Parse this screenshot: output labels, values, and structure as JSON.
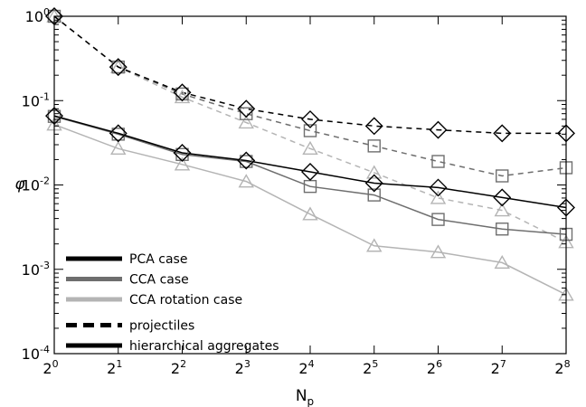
{
  "chart_data": {
    "type": "line",
    "xlabel": "N",
    "xlabel_sub": "p",
    "ylabel": "φ",
    "x_scale": "log2",
    "y_scale": "log10",
    "xlim": [
      1,
      256
    ],
    "ylim": [
      0.0001,
      1
    ],
    "x": [
      1,
      2,
      4,
      8,
      16,
      32,
      64,
      128,
      256
    ],
    "x_ticks": [
      {
        "base": "2",
        "exp": "0"
      },
      {
        "base": "2",
        "exp": "1"
      },
      {
        "base": "2",
        "exp": "2"
      },
      {
        "base": "2",
        "exp": "3"
      },
      {
        "base": "2",
        "exp": "4"
      },
      {
        "base": "2",
        "exp": "5"
      },
      {
        "base": "2",
        "exp": "6"
      },
      {
        "base": "2",
        "exp": "7"
      },
      {
        "base": "2",
        "exp": "8"
      }
    ],
    "y_ticks": [
      {
        "base": "10",
        "exp": "0"
      },
      {
        "base": "10",
        "exp": "-1"
      },
      {
        "base": "10",
        "exp": "-2"
      },
      {
        "base": "10",
        "exp": "-3"
      },
      {
        "base": "10",
        "exp": "-4"
      }
    ],
    "grid": false,
    "legend": {
      "placement": "bottom-left",
      "entries": [
        {
          "label": "PCA case",
          "color": "#000000",
          "style": "solid"
        },
        {
          "label": "CCA case",
          "color": "#6e6e6e",
          "style": "solid"
        },
        {
          "label": "CCA rotation case",
          "color": "#b4b4b4",
          "style": "solid"
        },
        {
          "label": "projectiles",
          "color": "#000000",
          "style": "dashed"
        },
        {
          "label": "hierarchical aggregates",
          "color": "#000000",
          "style": "solid"
        }
      ]
    },
    "series": [
      {
        "case": "PCA",
        "type": "projectiles",
        "color": "#000000",
        "style": "dashed",
        "marker": "diamond",
        "values": [
          1.0,
          0.25,
          0.125,
          0.08,
          0.06,
          0.05,
          0.045,
          0.041,
          0.041
        ]
      },
      {
        "case": "CCA",
        "type": "projectiles",
        "color": "#6e6e6e",
        "style": "dashed",
        "marker": "square",
        "values": [
          1.0,
          0.25,
          0.12,
          0.07,
          0.044,
          0.029,
          0.019,
          0.0128,
          0.016
        ]
      },
      {
        "case": "CCA rotation",
        "type": "projectiles",
        "color": "#b4b4b4",
        "style": "dashed",
        "marker": "triangle",
        "values": [
          1.0,
          0.25,
          0.11,
          0.055,
          0.027,
          0.014,
          0.007,
          0.005,
          0.0021
        ]
      },
      {
        "case": "PCA",
        "type": "hierarchical aggregates",
        "color": "#000000",
        "style": "solid",
        "marker": "diamond",
        "values": [
          0.066,
          0.041,
          0.024,
          0.0195,
          0.0143,
          0.0105,
          0.0093,
          0.0071,
          0.0054
        ]
      },
      {
        "case": "CCA",
        "type": "hierarchical aggregates",
        "color": "#6e6e6e",
        "style": "solid",
        "marker": "square",
        "values": [
          0.065,
          0.04,
          0.023,
          0.019,
          0.0096,
          0.0076,
          0.0039,
          0.003,
          0.0026
        ]
      },
      {
        "case": "CCA rotation",
        "type": "hierarchical aggregates",
        "color": "#b4b4b4",
        "style": "solid",
        "marker": "triangle",
        "values": [
          0.052,
          0.027,
          0.0175,
          0.011,
          0.0045,
          0.0019,
          0.0016,
          0.0012,
          0.0005
        ]
      }
    ]
  }
}
